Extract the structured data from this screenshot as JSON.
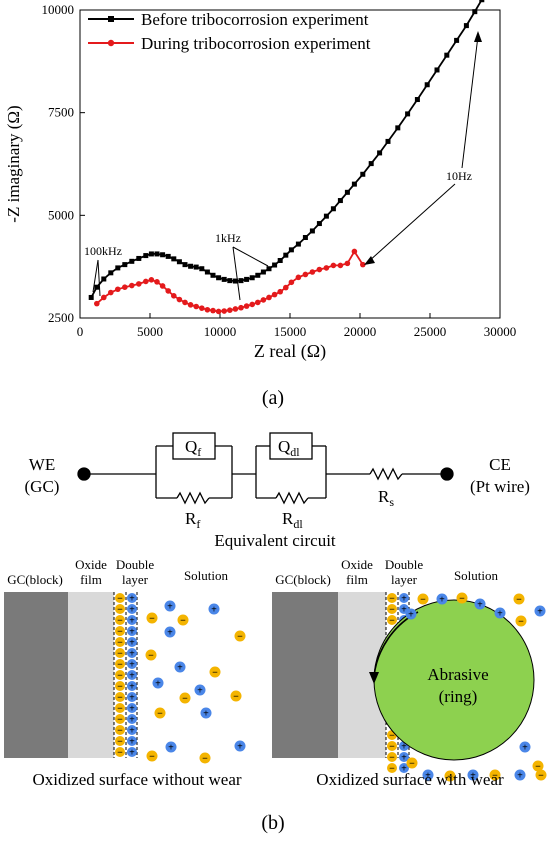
{
  "chart_data": {
    "type": "line",
    "xlabel": "Z real (Ω)",
    "ylabel": "-Z imaginary (Ω)",
    "xlim": [
      0,
      30000
    ],
    "ylim": [
      2500,
      10000
    ],
    "xticks": [
      "0",
      "5000",
      "10000",
      "15000",
      "20000",
      "25000",
      "30000"
    ],
    "yticks": [
      "2500",
      "5000",
      "7500",
      "10000"
    ],
    "grid": false,
    "legend": "top-left",
    "series": [
      {
        "name": "Before tribocorrosion experiment",
        "color": "#000000",
        "marker": "square",
        "x": [
          800,
          1200,
          1700,
          2200,
          2700,
          3200,
          3700,
          4200,
          4700,
          5100,
          5500,
          5900,
          6300,
          6700,
          7100,
          7500,
          7900,
          8300,
          8700,
          9100,
          9500,
          9900,
          10300,
          10700,
          11100,
          11500,
          11900,
          12300,
          12700,
          13100,
          13500,
          13900,
          14300,
          14700,
          15100,
          15600,
          16100,
          16600,
          17100,
          17600,
          18100,
          18600,
          19100,
          19600,
          20200,
          20800,
          21400,
          22000,
          22700,
          23400,
          24100,
          24800,
          25500,
          26200,
          26900,
          27600,
          28200,
          28700
        ],
        "y": [
          3000,
          3250,
          3450,
          3600,
          3720,
          3800,
          3880,
          3950,
          4020,
          4060,
          4060,
          4040,
          4000,
          3940,
          3870,
          3800,
          3760,
          3740,
          3700,
          3620,
          3540,
          3480,
          3440,
          3410,
          3400,
          3410,
          3440,
          3480,
          3540,
          3620,
          3700,
          3790,
          3900,
          4030,
          4160,
          4300,
          4460,
          4620,
          4800,
          4980,
          5160,
          5360,
          5560,
          5760,
          6000,
          6260,
          6520,
          6800,
          7130,
          7470,
          7820,
          8180,
          8540,
          8900,
          9260,
          9620,
          9960,
          10250
        ]
      },
      {
        "name": "During tribocorrosion experiment",
        "color": "#e41a1c",
        "marker": "circle",
        "x": [
          1200,
          1700,
          2200,
          2700,
          3200,
          3700,
          4200,
          4700,
          5100,
          5500,
          5900,
          6300,
          6700,
          7100,
          7500,
          7900,
          8300,
          8700,
          9100,
          9500,
          9900,
          10300,
          10700,
          11100,
          11500,
          11900,
          12300,
          12700,
          13100,
          13500,
          13900,
          14300,
          14700,
          15100,
          15600,
          16100,
          16600,
          17100,
          17600,
          18100,
          18600,
          19100,
          19600,
          20200
        ],
        "y": [
          2850,
          3000,
          3120,
          3200,
          3250,
          3290,
          3330,
          3390,
          3430,
          3380,
          3280,
          3160,
          3040,
          2950,
          2880,
          2820,
          2780,
          2740,
          2700,
          2680,
          2660,
          2670,
          2690,
          2720,
          2750,
          2790,
          2830,
          2880,
          2940,
          3000,
          3070,
          3140,
          3240,
          3370,
          3490,
          3560,
          3620,
          3680,
          3720,
          3780,
          3780,
          3830,
          4120,
          3800
        ]
      }
    ],
    "annotations": [
      "100kHz",
      "1kHz",
      "10Hz"
    ]
  },
  "panel_labels": {
    "a": "(a)",
    "b": "(b)"
  },
  "circuit": {
    "we_label": "WE",
    "we_sub": "(GC)",
    "ce_label": "CE",
    "ce_sub": "(Pt wire)",
    "qf_main": "Q",
    "qf_sub": "f",
    "qdl_main": "Q",
    "qdl_sub": "dl",
    "rf_main": "R",
    "rf_sub": "f",
    "rdl_main": "R",
    "rdl_sub": "dl",
    "rs_main": "R",
    "rs_sub": "s",
    "caption": "Equivalent circuit"
  },
  "schematic": {
    "left": {
      "block_label": "GC(block)",
      "oxide_label_1": "Oxide",
      "oxide_label_2": "film",
      "double_label_1": "Double",
      "double_label_2": "layer",
      "solution_label": "Solution",
      "caption": "Oxidized surface without wear"
    },
    "right": {
      "block_label": "GC(block)",
      "oxide_label_1": "Oxide",
      "oxide_label_2": "film",
      "double_label_1": "Double",
      "double_label_2": "layer",
      "solution_label": "Solution",
      "abrasive_1": "Abrasive",
      "abrasive_2": "(ring)",
      "caption": "Oxidized surface with wear"
    },
    "plus_glyph": "+",
    "minus_glyph": "−",
    "colors": {
      "block": "#7a7a7a",
      "oxide": "#d9d9d9",
      "cation": "#4a86e8",
      "anion": "#f4b400",
      "abrasive": "#8dd14f"
    }
  }
}
